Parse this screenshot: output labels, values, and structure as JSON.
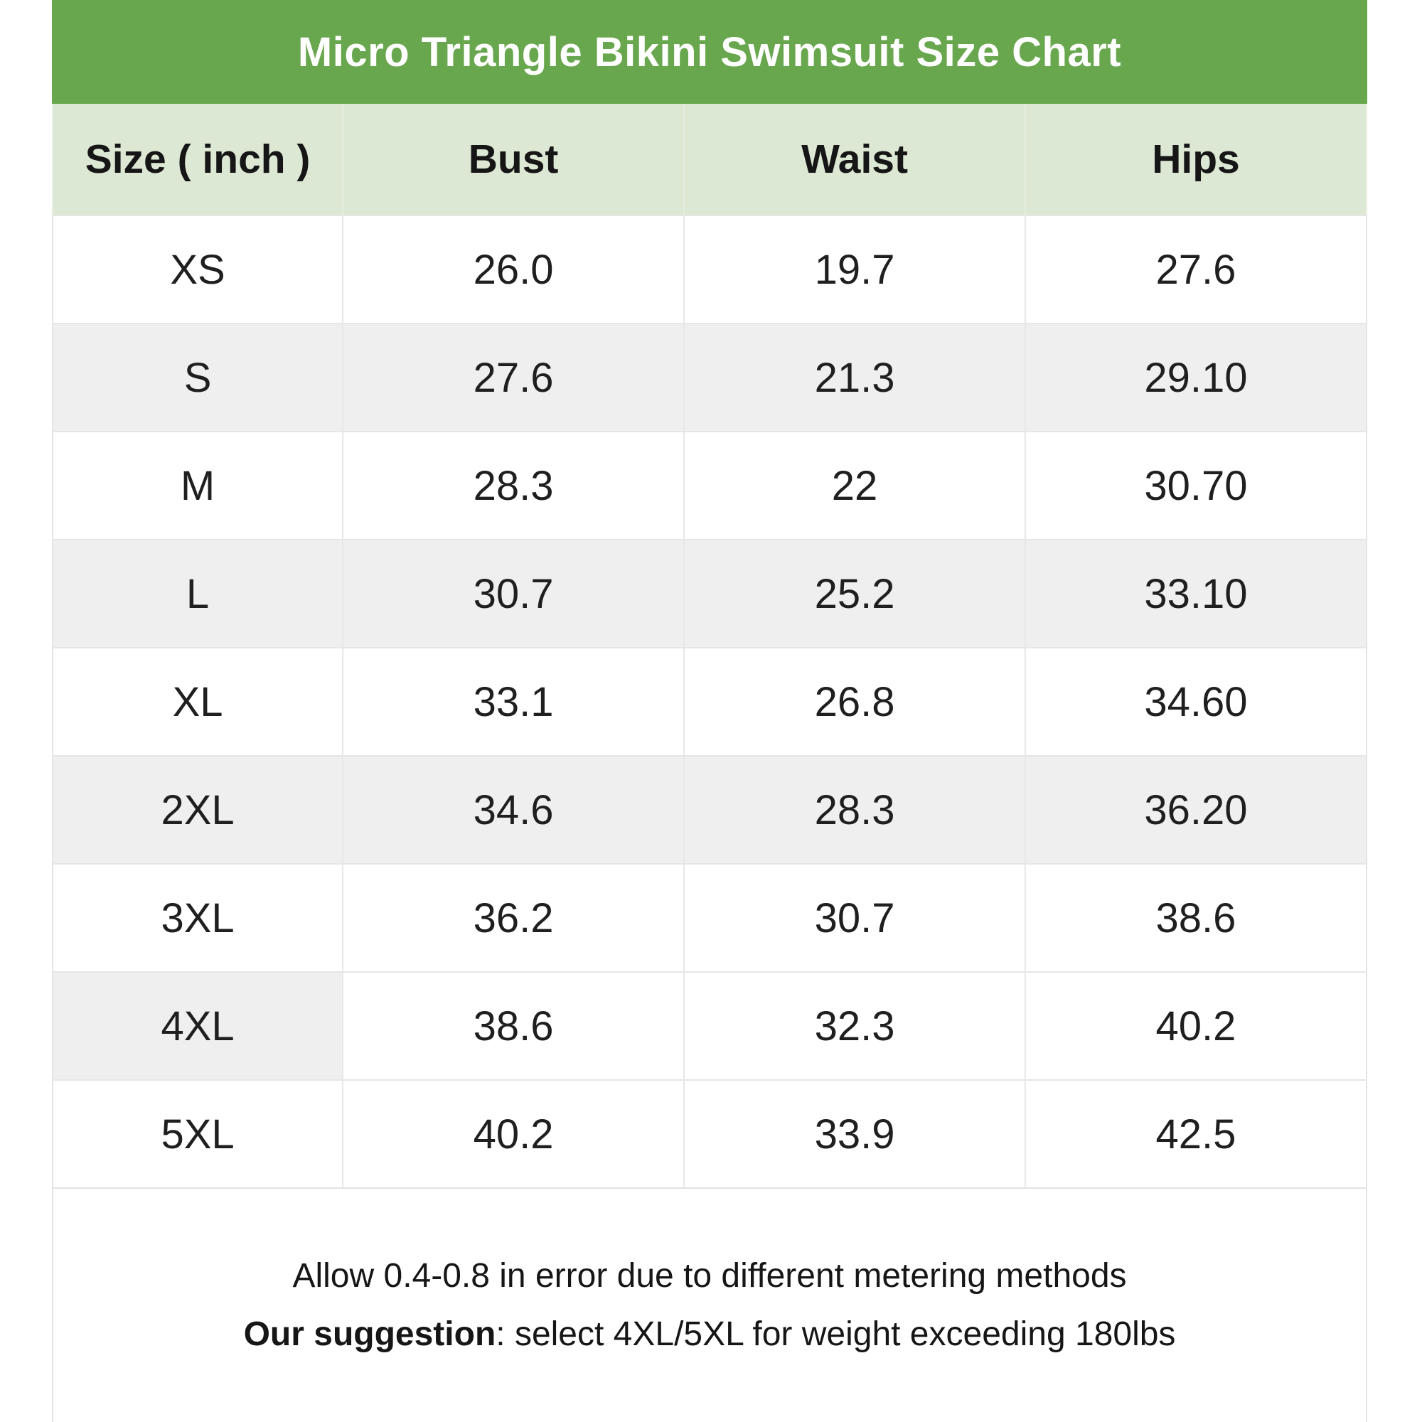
{
  "chart_data": {
    "type": "table",
    "title": "Micro Triangle Bikini Swimsuit Size Chart",
    "columns": [
      "Size ( inch )",
      "Bust",
      "Waist",
      "Hips"
    ],
    "rows": [
      [
        "XS",
        "26.0",
        "19.7",
        "27.6"
      ],
      [
        "S",
        "27.6",
        "21.3",
        "29.10"
      ],
      [
        "M",
        "28.3",
        "22",
        "30.70"
      ],
      [
        "L",
        "30.7",
        "25.2",
        "33.10"
      ],
      [
        "XL",
        "33.1",
        "26.8",
        "34.60"
      ],
      [
        "2XL",
        "34.6",
        "28.3",
        "36.20"
      ],
      [
        "3XL",
        "36.2",
        "30.7",
        "38.6"
      ],
      [
        "4XL",
        "38.6",
        "32.3",
        "40.2"
      ],
      [
        "5XL",
        "40.2",
        "33.9",
        "42.5"
      ]
    ],
    "notes": [
      "Allow 0.4-0.8 in error due to different metering methods",
      "Our suggestion: select 4XL/5XL for weight exceeding 180lbs"
    ]
  },
  "footer": {
    "line1": "Allow 0.4-0.8 in error due to different metering methods",
    "suggestion_label": "Our suggestion",
    "suggestion_rest": ": select 4XL/5XL for weight exceeding 180lbs"
  },
  "colors": {
    "title_bar_green": "#69a74e",
    "header_row_green": "#dde8d4",
    "alt_row_gray": "#efefef",
    "border_gray": "#e6e6e6",
    "title_text": "#ffffff",
    "body_text": "#1f1f1f"
  }
}
